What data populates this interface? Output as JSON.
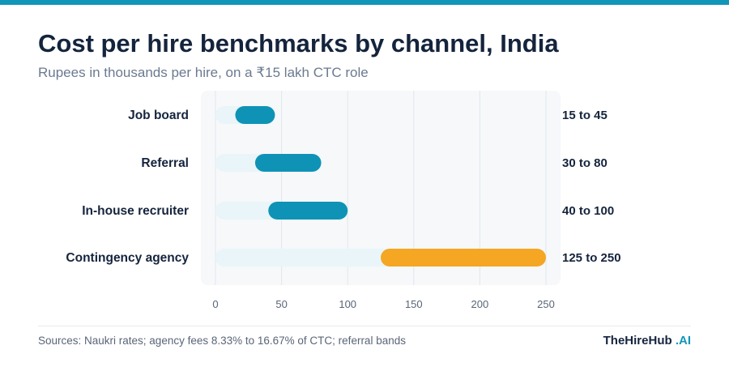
{
  "header": {
    "title": "Cost per hire benchmarks by channel, India",
    "subtitle": "Rupees in thousands per hire, on a ₹15 lakh CTC role"
  },
  "footer": {
    "sources": "Sources: Naukri rates; agency fees 8.33% to 16.67% of CTC; referral bands",
    "brand_name": "TheHireHub",
    "brand_suffix": ".AI"
  },
  "colors": {
    "top_bar": "#1096b8",
    "primary_bar": "#0e93b6",
    "highlight_bar": "#f5a623",
    "track": "#e9f5f9",
    "plot_bg": "#f6f8fa",
    "gridline": "#e2e7ed",
    "label_text": "#15243d",
    "tick_text": "#5a6577"
  },
  "chart_data": {
    "type": "bar",
    "orientation": "horizontal",
    "subtype": "range",
    "title": "Cost per hire benchmarks by channel, India",
    "subtitle": "Rupees in thousands per hire, on a ₹15 lakh CTC role",
    "categories": [
      "Job board",
      "Referral",
      "In-house recruiter",
      "Contingency agency"
    ],
    "series": [
      {
        "low": [
          15,
          30,
          40,
          125
        ],
        "high": [
          45,
          80,
          100,
          250
        ]
      }
    ],
    "range_labels": [
      "15 to 45",
      "30 to 80",
      "40 to 100",
      "125 to 250"
    ],
    "highlight_category": "Contingency agency",
    "xlim": [
      0,
      250
    ],
    "xticks": [
      0,
      50,
      100,
      150,
      200,
      250
    ],
    "grid": true,
    "legend": "none"
  }
}
